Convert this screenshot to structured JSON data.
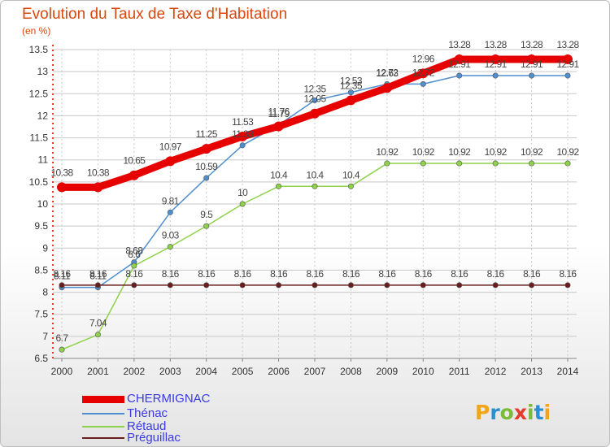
{
  "header": {
    "title": "Evolution du Taux de Taxe d'Habitation",
    "unit": "(en %)"
  },
  "logo": {
    "text": "Proxiti",
    "letters": [
      "P",
      "r",
      "o",
      "x",
      "i",
      "t",
      "i"
    ],
    "colors": [
      "#f2a41a",
      "#2a8fd0",
      "#7cba3a",
      "#e23a2b",
      "#7cba3a",
      "#2a8fd0",
      "#f2a41a"
    ]
  },
  "chart_data": {
    "type": "line",
    "x": [
      "2000",
      "2001",
      "2002",
      "2003",
      "2004",
      "2005",
      "2006",
      "2007",
      "2008",
      "2009",
      "2010",
      "2011",
      "2012",
      "2013",
      "2014"
    ],
    "ylim": [
      6.5,
      13.5
    ],
    "yticks": [
      "6.5",
      "7",
      "7.5",
      "8",
      "8.5",
      "9",
      "9.5",
      "10",
      "10.5",
      "11",
      "11.5",
      "12",
      "12.5",
      "13",
      "13.5"
    ],
    "grid": true,
    "legend_position": "bottom-left",
    "series": [
      {
        "name": "CHERMIGNAC",
        "color": "#e60000",
        "values": [
          10.38,
          10.38,
          10.65,
          10.97,
          11.25,
          11.53,
          11.76,
          12.05,
          12.35,
          12.63,
          12.96,
          13.28,
          13.28,
          13.28,
          13.28
        ],
        "labels": [
          "10.38",
          "10.38",
          "10.65",
          "10.97",
          "11.25",
          "11.53",
          "11.76",
          "12.05",
          "12.35",
          "12.63",
          "12.96",
          "13.28",
          "13.28",
          "13.28",
          "13.28"
        ]
      },
      {
        "name": "Thénac",
        "color": "#4f8fcf",
        "values": [
          8.11,
          8.11,
          8.68,
          9.81,
          10.59,
          11.33,
          11.79,
          12.35,
          12.53,
          12.72,
          12.72,
          12.91,
          12.91,
          12.91,
          12.91
        ],
        "labels": [
          "8.11",
          "8.11",
          "8.68",
          "9.81",
          "10.59",
          "11.33",
          "11.79",
          "12.35",
          "12.53",
          "12.72",
          "12.72",
          "12.91",
          "12.91",
          "12.91",
          "12.91"
        ]
      },
      {
        "name": "Rétaud",
        "color": "#8ed14a",
        "values": [
          6.7,
          7.04,
          8.6,
          9.03,
          9.5,
          10,
          10.4,
          10.4,
          10.4,
          10.92,
          10.92,
          10.92,
          10.92,
          10.92,
          10.92
        ],
        "labels": [
          "6.7",
          "7.04",
          "8.6",
          "9.03",
          "9.5",
          "10",
          "10.4",
          "10.4",
          "10.4",
          "10.92",
          "10.92",
          "10.92",
          "10.92",
          "10.92",
          "10.92"
        ]
      },
      {
        "name": "Préguillac",
        "color": "#6b1d1d",
        "values": [
          8.16,
          8.16,
          8.16,
          8.16,
          8.16,
          8.16,
          8.16,
          8.16,
          8.16,
          8.16,
          8.16,
          8.16,
          8.16,
          8.16,
          8.16
        ],
        "labels": [
          "8.16",
          "8.16",
          "8.16",
          "8.16",
          "8.16",
          "8.16",
          "8.16",
          "8.16",
          "8.16",
          "8.16",
          "8.16",
          "8.16",
          "8.16",
          "8.16",
          "8.16"
        ]
      }
    ]
  }
}
